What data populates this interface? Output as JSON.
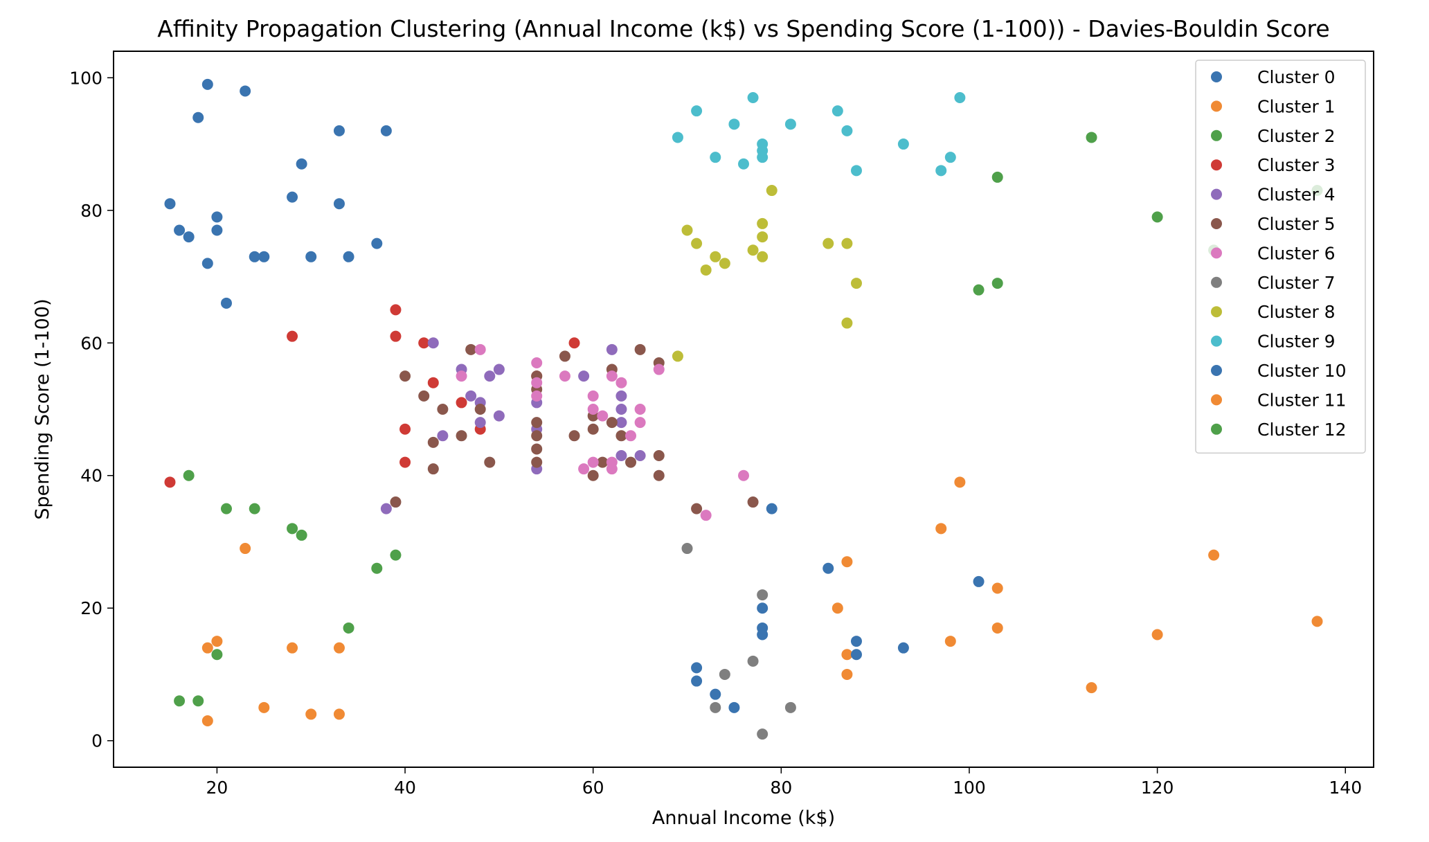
{
  "chart_data": {
    "type": "scatter",
    "title": "Affinity Propagation Clustering (Annual Income (k$) vs Spending Score (1-100)) - Davies-Bouldin Score",
    "xlabel": "Annual Income (k$)",
    "ylabel": "Spending Score (1-100)",
    "xlim": [
      9,
      143
    ],
    "ylim": [
      -4,
      104
    ],
    "xticks": [
      20,
      40,
      60,
      80,
      100,
      120,
      140
    ],
    "yticks": [
      0,
      20,
      40,
      60,
      80,
      100
    ],
    "grid": false,
    "legend_position": "top-right",
    "series": [
      {
        "name": "Cluster 0",
        "color": "#3a74b0",
        "points": [
          [
            19,
            99
          ],
          [
            23,
            98
          ],
          [
            18,
            94
          ],
          [
            33,
            92
          ],
          [
            38,
            92
          ],
          [
            29,
            87
          ],
          [
            15,
            81
          ],
          [
            33,
            81
          ],
          [
            28,
            82
          ],
          [
            20,
            79
          ],
          [
            16,
            77
          ],
          [
            20,
            77
          ],
          [
            17,
            76
          ],
          [
            37,
            75
          ],
          [
            19,
            72
          ],
          [
            24,
            73
          ],
          [
            25,
            73
          ],
          [
            30,
            73
          ],
          [
            34,
            73
          ],
          [
            21,
            66
          ]
        ]
      },
      {
        "name": "Cluster 1",
        "color": "#f08a34",
        "points": [
          [
            99,
            39
          ],
          [
            97,
            32
          ],
          [
            126,
            28
          ],
          [
            87,
            27
          ],
          [
            103,
            23
          ],
          [
            86,
            20
          ],
          [
            137,
            18
          ],
          [
            103,
            17
          ],
          [
            120,
            16
          ],
          [
            98,
            15
          ],
          [
            87,
            13
          ],
          [
            87,
            10
          ],
          [
            113,
            8
          ]
        ]
      },
      {
        "name": "Cluster 2",
        "color": "#4fa04a",
        "points": [
          [
            113,
            91
          ],
          [
            103,
            85
          ],
          [
            137,
            83
          ],
          [
            120,
            79
          ],
          [
            126,
            74
          ],
          [
            103,
            69
          ],
          [
            101,
            68
          ]
        ]
      },
      {
        "name": "Cluster 3",
        "color": "#cf3a35",
        "points": [
          [
            39,
            65
          ],
          [
            28,
            61
          ],
          [
            39,
            61
          ],
          [
            42,
            60
          ],
          [
            58,
            60
          ],
          [
            43,
            54
          ],
          [
            54,
            55
          ],
          [
            46,
            51
          ],
          [
            48,
            47
          ],
          [
            40,
            47
          ],
          [
            40,
            42
          ],
          [
            15,
            39
          ]
        ]
      },
      {
        "name": "Cluster 4",
        "color": "#8f6bbb",
        "points": [
          [
            43,
            60
          ],
          [
            62,
            59
          ],
          [
            46,
            56
          ],
          [
            50,
            56
          ],
          [
            49,
            55
          ],
          [
            59,
            55
          ],
          [
            47,
            52
          ],
          [
            63,
            52
          ],
          [
            48,
            51
          ],
          [
            54,
            51
          ],
          [
            63,
            50
          ],
          [
            50,
            49
          ],
          [
            48,
            48
          ],
          [
            63,
            48
          ],
          [
            54,
            47
          ],
          [
            44,
            46
          ],
          [
            63,
            43
          ],
          [
            65,
            43
          ],
          [
            54,
            41
          ],
          [
            38,
            35
          ]
        ]
      },
      {
        "name": "Cluster 5",
        "color": "#8a574c",
        "points": [
          [
            47,
            59
          ],
          [
            65,
            59
          ],
          [
            57,
            58
          ],
          [
            67,
            57
          ],
          [
            62,
            56
          ],
          [
            40,
            55
          ],
          [
            54,
            55
          ],
          [
            54,
            53
          ],
          [
            42,
            52
          ],
          [
            44,
            50
          ],
          [
            48,
            50
          ],
          [
            60,
            49
          ],
          [
            54,
            48
          ],
          [
            62,
            48
          ],
          [
            60,
            47
          ],
          [
            46,
            46
          ],
          [
            54,
            46
          ],
          [
            58,
            46
          ],
          [
            63,
            46
          ],
          [
            43,
            45
          ],
          [
            54,
            44
          ],
          [
            67,
            43
          ],
          [
            49,
            42
          ],
          [
            54,
            42
          ],
          [
            61,
            42
          ],
          [
            64,
            42
          ],
          [
            43,
            41
          ],
          [
            60,
            40
          ],
          [
            67,
            40
          ],
          [
            39,
            36
          ],
          [
            71,
            35
          ],
          [
            77,
            36
          ]
        ]
      },
      {
        "name": "Cluster 6",
        "color": "#db79bf",
        "points": [
          [
            48,
            59
          ],
          [
            54,
            57
          ],
          [
            57,
            55
          ],
          [
            62,
            55
          ],
          [
            46,
            55
          ],
          [
            63,
            54
          ],
          [
            67,
            56
          ],
          [
            54,
            54
          ],
          [
            54,
            52
          ],
          [
            60,
            52
          ],
          [
            60,
            50
          ],
          [
            65,
            50
          ],
          [
            61,
            49
          ],
          [
            65,
            48
          ],
          [
            64,
            46
          ],
          [
            60,
            42
          ],
          [
            62,
            42
          ],
          [
            59,
            41
          ],
          [
            62,
            41
          ],
          [
            76,
            40
          ],
          [
            72,
            34
          ]
        ]
      },
      {
        "name": "Cluster 7",
        "color": "#7f7f7f",
        "points": [
          [
            70,
            29
          ],
          [
            78,
            22
          ],
          [
            77,
            12
          ],
          [
            74,
            10
          ],
          [
            73,
            5
          ],
          [
            81,
            5
          ],
          [
            78,
            1
          ]
        ]
      },
      {
        "name": "Cluster 8",
        "color": "#bdbd38",
        "points": [
          [
            79,
            83
          ],
          [
            78,
            78
          ],
          [
            70,
            77
          ],
          [
            78,
            76
          ],
          [
            71,
            75
          ],
          [
            85,
            75
          ],
          [
            87,
            75
          ],
          [
            77,
            74
          ],
          [
            73,
            73
          ],
          [
            78,
            73
          ],
          [
            74,
            72
          ],
          [
            72,
            71
          ],
          [
            88,
            69
          ],
          [
            87,
            63
          ],
          [
            69,
            58
          ]
        ]
      },
      {
        "name": "Cluster 9",
        "color": "#4cbdcc",
        "points": [
          [
            77,
            97
          ],
          [
            99,
            97
          ],
          [
            71,
            95
          ],
          [
            86,
            95
          ],
          [
            75,
            93
          ],
          [
            81,
            93
          ],
          [
            87,
            92
          ],
          [
            69,
            91
          ],
          [
            78,
            90
          ],
          [
            93,
            90
          ],
          [
            78,
            89
          ],
          [
            73,
            88
          ],
          [
            78,
            88
          ],
          [
            98,
            88
          ],
          [
            76,
            87
          ],
          [
            88,
            86
          ],
          [
            97,
            86
          ]
        ]
      },
      {
        "name": "Cluster 10",
        "color": "#3a74b0",
        "points": [
          [
            79,
            35
          ],
          [
            85,
            26
          ],
          [
            101,
            24
          ],
          [
            78,
            20
          ],
          [
            78,
            17
          ],
          [
            78,
            16
          ],
          [
            88,
            15
          ],
          [
            93,
            14
          ],
          [
            88,
            13
          ],
          [
            71,
            11
          ],
          [
            71,
            9
          ],
          [
            73,
            7
          ],
          [
            75,
            5
          ]
        ]
      },
      {
        "name": "Cluster 11",
        "color": "#f08a34",
        "points": [
          [
            23,
            29
          ],
          [
            20,
            15
          ],
          [
            19,
            14
          ],
          [
            28,
            14
          ],
          [
            33,
            14
          ],
          [
            25,
            5
          ],
          [
            30,
            4
          ],
          [
            33,
            4
          ],
          [
            19,
            3
          ]
        ]
      },
      {
        "name": "Cluster 12",
        "color": "#4fa04a",
        "points": [
          [
            17,
            40
          ],
          [
            21,
            35
          ],
          [
            24,
            35
          ],
          [
            28,
            32
          ],
          [
            29,
            31
          ],
          [
            39,
            28
          ],
          [
            37,
            26
          ],
          [
            34,
            17
          ],
          [
            20,
            13
          ],
          [
            16,
            6
          ],
          [
            18,
            6
          ]
        ]
      }
    ]
  }
}
